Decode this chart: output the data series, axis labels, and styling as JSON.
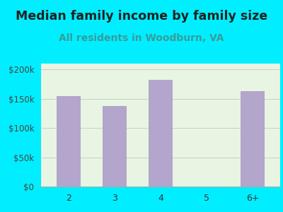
{
  "title": "Median family income by family size",
  "subtitle": "All residents in Woodburn, VA",
  "categories": [
    "2",
    "3",
    "4",
    "5",
    "6+"
  ],
  "values": [
    155000,
    138000,
    182000,
    0,
    163000
  ],
  "bar_color": "#b3a5cc",
  "title_color": "#222222",
  "subtitle_color": "#3a9a9a",
  "bg_color": "#00eeff",
  "plot_bg_color": "#e8f5e2",
  "yticks": [
    0,
    50000,
    100000,
    150000,
    200000
  ],
  "ytick_labels": [
    "$0",
    "$50k",
    "$100k",
    "$150k",
    "$200k"
  ],
  "ylim": [
    0,
    210000
  ],
  "title_fontsize": 12.5,
  "subtitle_fontsize": 10
}
